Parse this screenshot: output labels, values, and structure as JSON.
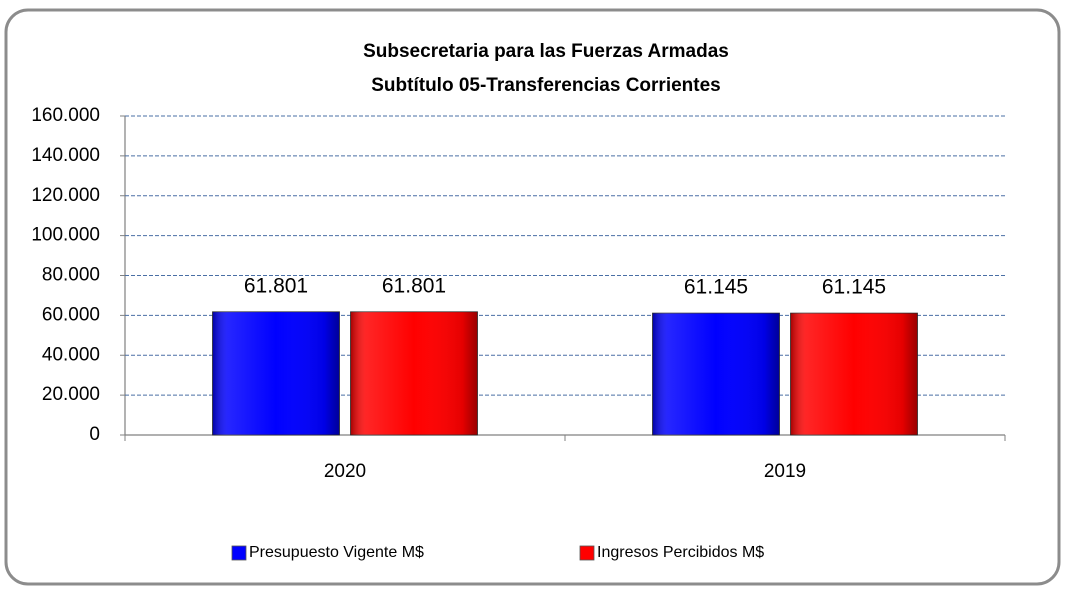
{
  "chart_data": {
    "type": "bar",
    "title": "Subsecretaria para las Fuerzas Armadas",
    "subtitle": "Subtítulo 05-Transferencias Corrientes",
    "categories": [
      "2020",
      "2019"
    ],
    "series": [
      {
        "name": "Presupuesto Vigente M$",
        "color": "#0000ff",
        "values": [
          61801,
          61145
        ],
        "value_labels": [
          "61.801",
          "61.145"
        ]
      },
      {
        "name": "Ingresos Percibidos M$",
        "color": "#ff0000",
        "values": [
          61801,
          61145
        ],
        "value_labels": [
          "61.801",
          "61.145"
        ]
      }
    ],
    "ylim": [
      0,
      160000
    ],
    "yticks": [
      0,
      {
        "value": 20000,
        "label": "20.000"
      },
      {
        "value": 40000,
        "label": "40.000"
      },
      {
        "value": 60000,
        "label": "60.000"
      },
      {
        "value": 80000,
        "label": "80.000"
      },
      {
        "value": 100000,
        "label": "100.000"
      },
      {
        "value": 120000,
        "label": "120.000"
      },
      {
        "value": 140000,
        "label": "140.000"
      },
      {
        "value": 160000,
        "label": "160.000"
      }
    ],
    "grid": true,
    "legend": "bottom"
  }
}
